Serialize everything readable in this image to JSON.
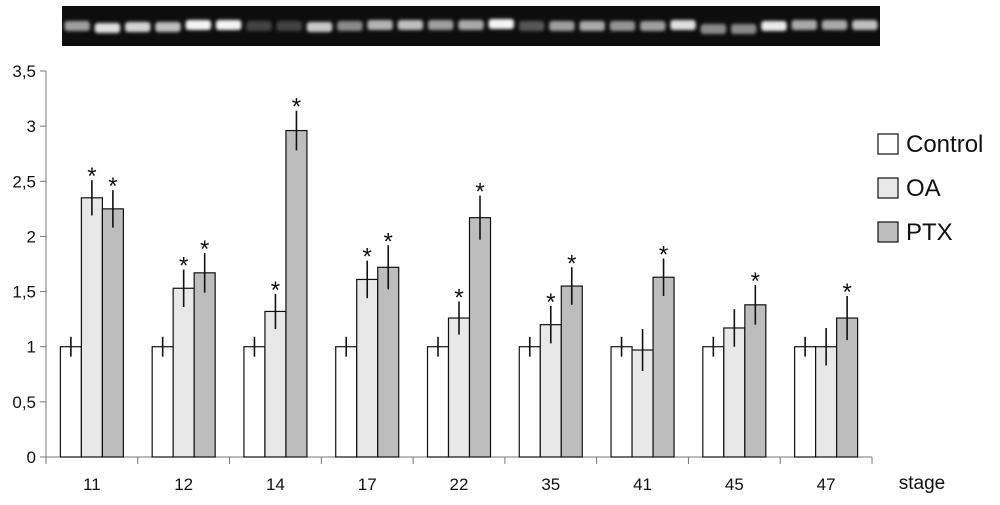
{
  "chart_data": {
    "type": "bar",
    "xlabel": "stage",
    "ylabel": "",
    "ylim": [
      0,
      3.5
    ],
    "yticks": [
      "0",
      "0,5",
      "1",
      "1,5",
      "2",
      "2,5",
      "3",
      "3,5"
    ],
    "ytick_values": [
      0,
      0.5,
      1,
      1.5,
      2,
      2.5,
      3,
      3.5
    ],
    "categories": [
      "11",
      "12",
      "14",
      "17",
      "22",
      "35",
      "41",
      "45",
      "47"
    ],
    "legend_placement": "right",
    "grid": false,
    "series": [
      {
        "name": "Control",
        "color": "#ffffff",
        "values": [
          1,
          1,
          1,
          1,
          1,
          1,
          1,
          1,
          1
        ],
        "errors": [
          0.09,
          0.09,
          0.09,
          0.09,
          0.09,
          0.09,
          0.09,
          0.09,
          0.09
        ],
        "significant": [
          false,
          false,
          false,
          false,
          false,
          false,
          false,
          false,
          false
        ]
      },
      {
        "name": "OA",
        "color": "#e8e8e8",
        "values": [
          2.35,
          1.53,
          1.32,
          1.61,
          1.26,
          1.2,
          0.97,
          1.17,
          1.0
        ],
        "errors": [
          0.16,
          0.17,
          0.16,
          0.17,
          0.15,
          0.17,
          0.19,
          0.17,
          0.17
        ],
        "significant": [
          true,
          true,
          true,
          true,
          true,
          true,
          false,
          false,
          false
        ]
      },
      {
        "name": "PTX",
        "color": "#bdbdbd",
        "values": [
          2.25,
          1.67,
          2.96,
          1.72,
          2.17,
          1.55,
          1.63,
          1.38,
          1.26
        ],
        "errors": [
          0.17,
          0.18,
          0.18,
          0.2,
          0.2,
          0.17,
          0.17,
          0.18,
          0.2
        ],
        "significant": [
          true,
          true,
          true,
          true,
          true,
          true,
          true,
          true,
          true
        ]
      }
    ],
    "significance_marker": "*"
  },
  "gel_image": {
    "lanes": 27,
    "intensities": [
      0.55,
      0.85,
      0.8,
      0.7,
      0.95,
      0.95,
      0.12,
      0.12,
      0.75,
      0.45,
      0.65,
      0.7,
      0.55,
      0.6,
      0.95,
      0.22,
      0.55,
      0.6,
      0.5,
      0.55,
      0.85,
      0.45,
      0.45,
      0.9,
      0.6,
      0.6,
      0.7
    ],
    "offsets": [
      0,
      2,
      1,
      1,
      -1,
      -1,
      0,
      0,
      1,
      0,
      -1,
      -1,
      -1,
      -1,
      -2,
      0,
      0,
      0,
      0,
      0,
      -1,
      3,
      3,
      0,
      -1,
      -1,
      -1
    ]
  }
}
